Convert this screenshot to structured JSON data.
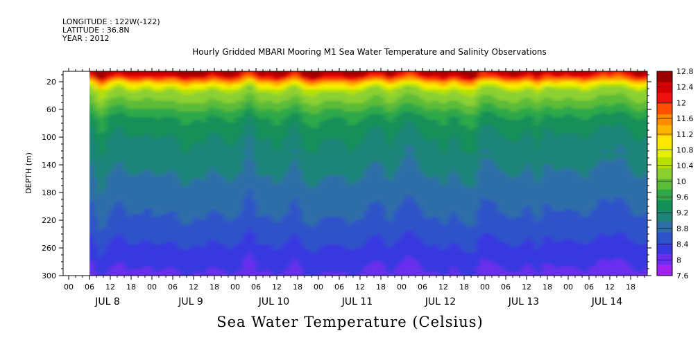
{
  "header": {
    "longitude": "LONGITUDE : 122W(-122)",
    "latitude": "LATITUDE : 36.8N",
    "year": "YEAR : 2012"
  },
  "chart_data": {
    "type": "heatmap",
    "title": "Hourly Gridded MBARI Mooring M1 Sea Water Temperature and Salinity Observations",
    "xlabel": "Sea Water Temperature (Celsius)",
    "ylabel": "DEPTH (m)",
    "y_ticks": [
      20,
      60,
      100,
      140,
      180,
      220,
      260,
      300
    ],
    "ylim": [
      300,
      5
    ],
    "x_hour_labels": [
      "00",
      "06",
      "12",
      "18",
      "00",
      "06",
      "12",
      "18",
      "00",
      "06",
      "12",
      "18",
      "00",
      "06",
      "12",
      "18",
      "00",
      "06",
      "12",
      "18",
      "00",
      "06",
      "12",
      "18",
      "00",
      "06",
      "12",
      "18"
    ],
    "x_day_labels": [
      "JUL 8",
      "JUL 9",
      "JUL 10",
      "JUL 11",
      "JUL 12",
      "JUL 13",
      "JUL 14"
    ],
    "data_start": "JUL 8 06",
    "colorbar_labels": [
      "12.8",
      "12.4",
      "12",
      "11.6",
      "11.2",
      "10.8",
      "10.4",
      "10",
      "9.6",
      "9.2",
      "8.8",
      "8.4",
      "8",
      "7.6"
    ],
    "colorbar_colors": [
      "#9a0000",
      "#d40000",
      "#f01010",
      "#ff5000",
      "#ff8c00",
      "#ffb400",
      "#ffe800",
      "#e6f000",
      "#b8e000",
      "#8cd030",
      "#5cbc38",
      "#2ea848",
      "#139058",
      "#1e8478",
      "#2e6ea8",
      "#2e52c8",
      "#3838e0",
      "#6a2ef0",
      "#a222f0"
    ],
    "depth_profile": [
      {
        "depth": 5,
        "temp": 12.5
      },
      {
        "depth": 12,
        "temp": 12.0
      },
      {
        "depth": 20,
        "temp": 11.0
      },
      {
        "depth": 30,
        "temp": 10.2
      },
      {
        "depth": 45,
        "temp": 9.9
      },
      {
        "depth": 70,
        "temp": 9.3
      },
      {
        "depth": 100,
        "temp": 9.0
      },
      {
        "depth": 140,
        "temp": 8.8
      },
      {
        "depth": 180,
        "temp": 8.6
      },
      {
        "depth": 220,
        "temp": 8.4
      },
      {
        "depth": 260,
        "temp": 8.1
      },
      {
        "depth": 300,
        "temp": 7.8
      }
    ]
  }
}
